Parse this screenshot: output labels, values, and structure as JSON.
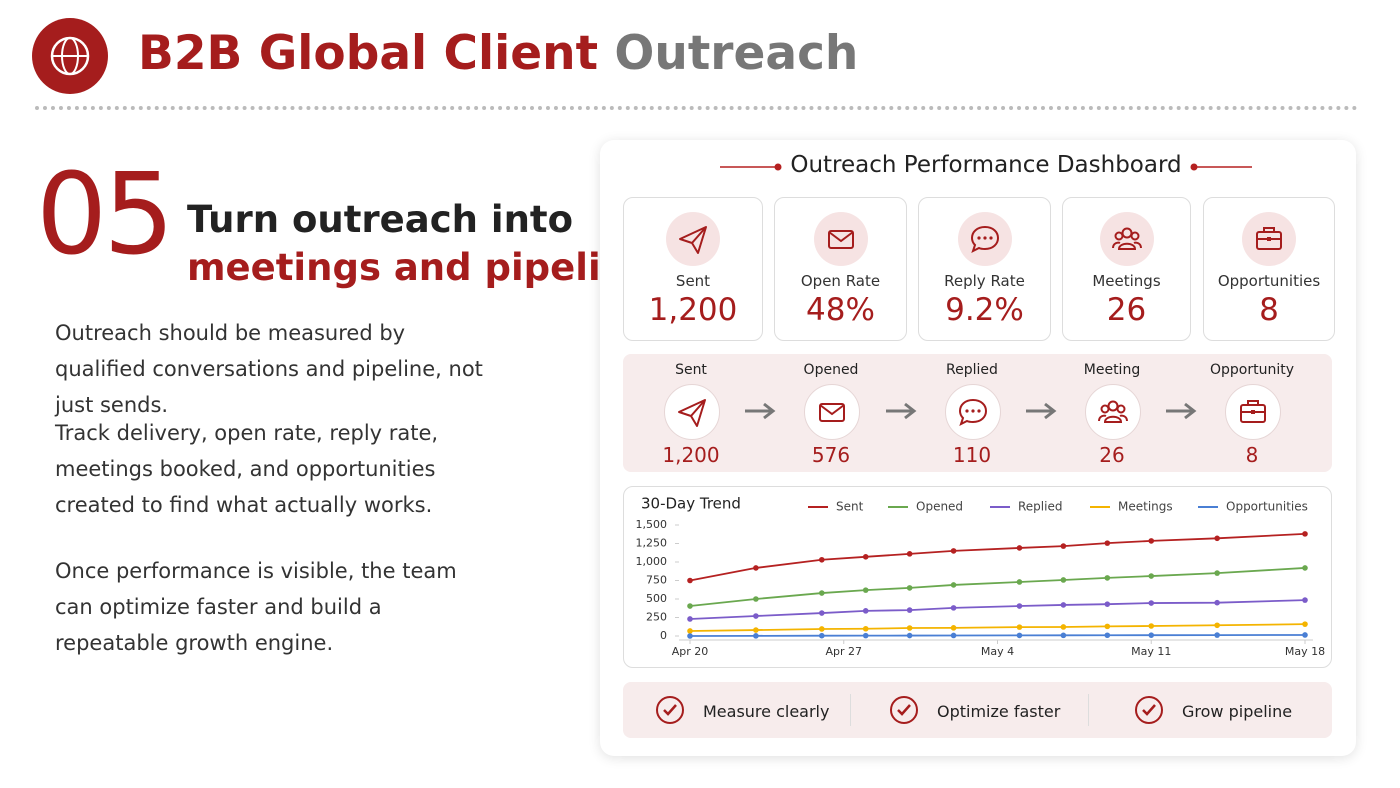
{
  "header": {
    "title_main": "B2B Global Client",
    "title_accent": "Outreach"
  },
  "section": {
    "number": "05",
    "heading_line1": "Turn outreach into",
    "heading_line2": "meetings and pipeline",
    "paragraphs": [
      "Outreach should be measured by qualified conversations and pipeline, not just sends.",
      "Track delivery, open rate, reply rate, meetings booked, and opportunities created to find what actually works.",
      "Once performance is visible, the team can optimize faster and build a repeatable growth engine."
    ]
  },
  "dashboard": {
    "title": "Outreach Performance Dashboard",
    "kpis": [
      {
        "label": "Sent",
        "value": "1,200"
      },
      {
        "label": "Open Rate",
        "value": "48%"
      },
      {
        "label": "Reply Rate",
        "value": "9.2%"
      },
      {
        "label": "Meetings",
        "value": "26"
      },
      {
        "label": "Opportunities",
        "value": "8"
      }
    ],
    "funnel": [
      {
        "label": "Sent",
        "value": "1,200"
      },
      {
        "label": "Opened",
        "value": "576"
      },
      {
        "label": "Replied",
        "value": "110"
      },
      {
        "label": "Meeting",
        "value": "26"
      },
      {
        "label": "Opportunity",
        "value": "8"
      }
    ],
    "checks": [
      "Measure clearly",
      "Optimize faster",
      "Grow pipeline"
    ]
  },
  "chart_data": {
    "type": "line",
    "title": "30-Day Trend",
    "x": [
      "Apr 20",
      "Apr 23",
      "Apr 26",
      "Apr 28",
      "Apr 30",
      "May 2",
      "May 5",
      "May 7",
      "May 9",
      "May 11",
      "May 14",
      "May 18"
    ],
    "xlim": [
      "Apr 20",
      "May 18"
    ],
    "xticks": [
      "Apr 20",
      "Apr 27",
      "May 4",
      "May 11",
      "May 18"
    ],
    "ylim": [
      0,
      1500
    ],
    "yticks": [
      0,
      250,
      500,
      750,
      {
        "value": 1000,
        "label": "1,000"
      },
      {
        "value": 1250,
        "label": "1,250"
      },
      {
        "value": 1500,
        "label": "1,500"
      }
    ],
    "legend": "top-right",
    "series": [
      {
        "name": "Sent",
        "color": "#b52121",
        "values": [
          750,
          920,
          1030,
          1070,
          1110,
          1150,
          1190,
          1215,
          1255,
          1285,
          1320,
          1380
        ]
      },
      {
        "name": "Opened",
        "color": "#6aa84f",
        "values": [
          405,
          500,
          580,
          620,
          650,
          690,
          730,
          757,
          785,
          810,
          850,
          920
        ]
      },
      {
        "name": "Replied",
        "color": "#7b5cc9",
        "values": [
          230,
          270,
          310,
          340,
          350,
          380,
          405,
          420,
          430,
          445,
          450,
          485
        ]
      },
      {
        "name": "Meetings",
        "color": "#f4b400",
        "values": [
          68,
          80,
          95,
          98,
          108,
          110,
          120,
          122,
          130,
          135,
          145,
          160
        ]
      },
      {
        "name": "Opportunities",
        "color": "#4a7fd4",
        "values": [
          0,
          2,
          4,
          5,
          6,
          7,
          8,
          9,
          10,
          11,
          12,
          14
        ]
      }
    ]
  }
}
